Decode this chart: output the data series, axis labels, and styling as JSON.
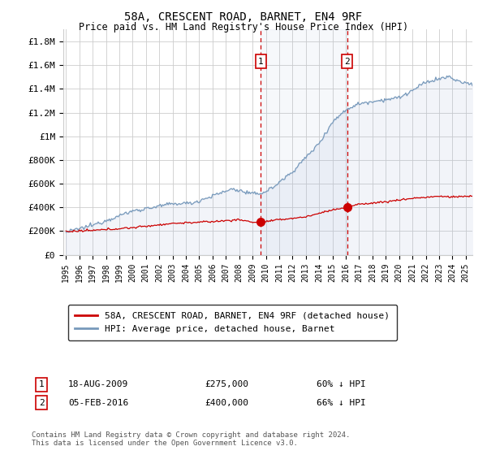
{
  "title": "58A, CRESCENT ROAD, BARNET, EN4 9RF",
  "subtitle": "Price paid vs. HM Land Registry's House Price Index (HPI)",
  "ylabel_ticks": [
    "£0",
    "£200K",
    "£400K",
    "£600K",
    "£800K",
    "£1M",
    "£1.2M",
    "£1.4M",
    "£1.6M",
    "£1.8M"
  ],
  "ylim": [
    0,
    1900000
  ],
  "xlim_start": 1994.8,
  "xlim_end": 2025.5,
  "transaction1": {
    "date_num": 2009.625,
    "price": 275000,
    "label": "1",
    "date_str": "18-AUG-2009",
    "pct": "60%"
  },
  "transaction2": {
    "date_num": 2016.09,
    "price": 400000,
    "label": "2",
    "date_str": "05-FEB-2016",
    "pct": "66%"
  },
  "legend_property": "58A, CRESCENT ROAD, BARNET, EN4 9RF (detached house)",
  "legend_hpi": "HPI: Average price, detached house, Barnet",
  "footer": "Contains HM Land Registry data © Crown copyright and database right 2024.\nThis data is licensed under the Open Government Licence v3.0.",
  "property_color": "#cc0000",
  "hpi_color": "#7799bb",
  "hpi_fill_color": "#ddeeff",
  "vline_color": "#cc0000",
  "box_color": "#cc0000",
  "background_color": "#ffffff",
  "grid_color": "#cccccc"
}
